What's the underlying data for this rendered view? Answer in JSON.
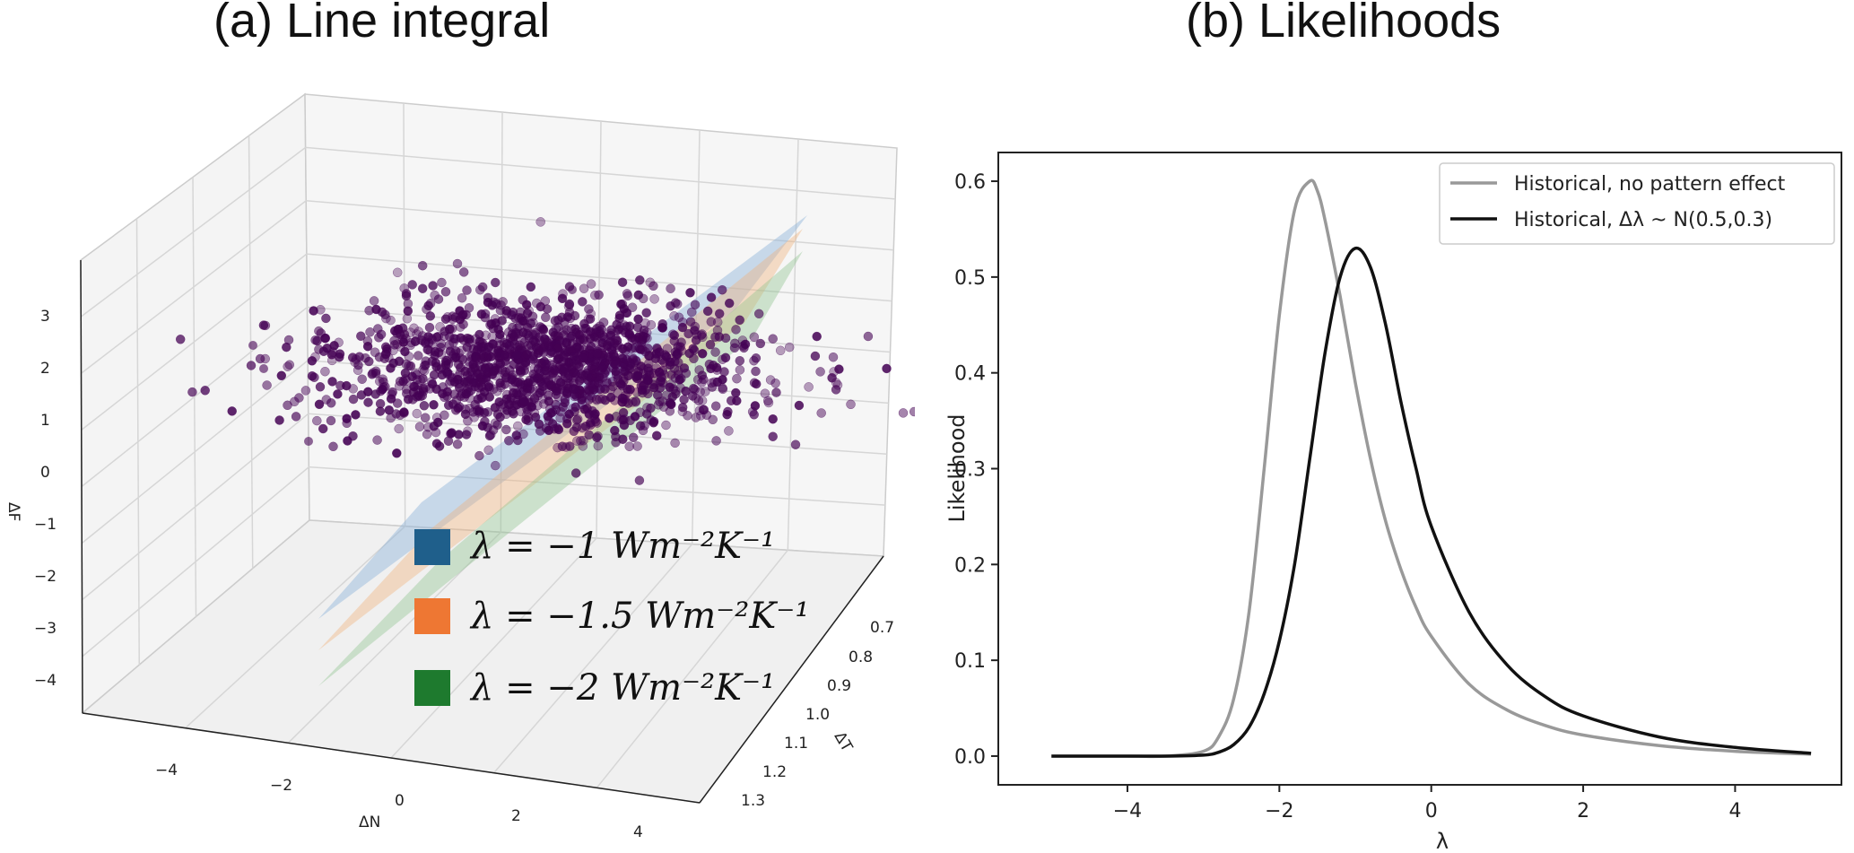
{
  "panel_a": {
    "title": "(a) Line integral",
    "axes": {
      "z_label": "ΔF",
      "x_label": "ΔN",
      "y_label": "ΔT",
      "z_ticks": [
        "3",
        "2",
        "1",
        "0",
        "−1",
        "−2",
        "−3",
        "−4"
      ],
      "x_ticks": [
        "−4",
        "−2",
        "0",
        "2",
        "4"
      ],
      "y_ticks": [
        "0.7",
        "0.8",
        "0.9",
        "1.0",
        "1.1",
        "1.2",
        "1.3"
      ]
    },
    "legend": [
      {
        "label": "λ = −1 Wm⁻²K⁻¹",
        "color": "#1f5f8b"
      },
      {
        "label": "λ = −1.5 Wm⁻²K⁻¹",
        "color": "#ee7733"
      },
      {
        "label": "λ = −2 Wm⁻²K⁻¹",
        "color": "#1e7a2e"
      }
    ],
    "scatter_color": "#440154"
  },
  "panel_b": {
    "title": "(b) Likelihoods",
    "chart_data": {
      "type": "line",
      "title": "(b) Likelihoods",
      "xlabel": "λ",
      "ylabel": "Likelihood",
      "xlim": [
        -5.7,
        5.4
      ],
      "ylim": [
        -0.03,
        0.63
      ],
      "x_ticks": [
        -4,
        -2,
        0,
        2,
        4
      ],
      "y_ticks": [
        0.0,
        0.1,
        0.2,
        0.3,
        0.4,
        0.5,
        0.6
      ],
      "x_tick_labels": [
        "−4",
        "−2",
        "0",
        "2",
        "4"
      ],
      "y_tick_labels": [
        "0.0",
        "0.1",
        "0.2",
        "0.3",
        "0.4",
        "0.5",
        "0.6"
      ],
      "legend_position": "top-right",
      "series": [
        {
          "name": "Historical, no pattern effect",
          "color": "#999999",
          "x": [
            -5,
            -4,
            -3.5,
            -3,
            -2.8,
            -2.6,
            -2.4,
            -2.2,
            -2.0,
            -1.8,
            -1.6,
            -1.5,
            -1.4,
            -1.2,
            -1.0,
            -0.8,
            -0.6,
            -0.4,
            -0.2,
            0,
            0.5,
            1.0,
            1.5,
            2.0,
            3.0,
            4.0,
            5.0
          ],
          "y": [
            0.0,
            0.0,
            0.0,
            0.005,
            0.02,
            0.06,
            0.15,
            0.3,
            0.46,
            0.57,
            0.6,
            0.59,
            0.56,
            0.48,
            0.39,
            0.31,
            0.245,
            0.195,
            0.155,
            0.125,
            0.075,
            0.048,
            0.032,
            0.022,
            0.011,
            0.005,
            0.002
          ]
        },
        {
          "name": "Historical, Δλ ~ N(0.5,0.3)",
          "color": "#111111",
          "x": [
            -5,
            -4,
            -3.5,
            -3,
            -2.8,
            -2.6,
            -2.4,
            -2.2,
            -2.0,
            -1.8,
            -1.6,
            -1.4,
            -1.2,
            -1.0,
            -0.8,
            -0.6,
            -0.4,
            -0.2,
            0,
            0.5,
            1.0,
            1.5,
            2.0,
            3.0,
            4.0,
            5.0
          ],
          "y": [
            0.0,
            0.0,
            0.0,
            0.001,
            0.004,
            0.012,
            0.03,
            0.065,
            0.12,
            0.2,
            0.31,
            0.42,
            0.5,
            0.53,
            0.51,
            0.45,
            0.37,
            0.3,
            0.24,
            0.15,
            0.095,
            0.062,
            0.042,
            0.02,
            0.009,
            0.003
          ]
        }
      ]
    }
  }
}
